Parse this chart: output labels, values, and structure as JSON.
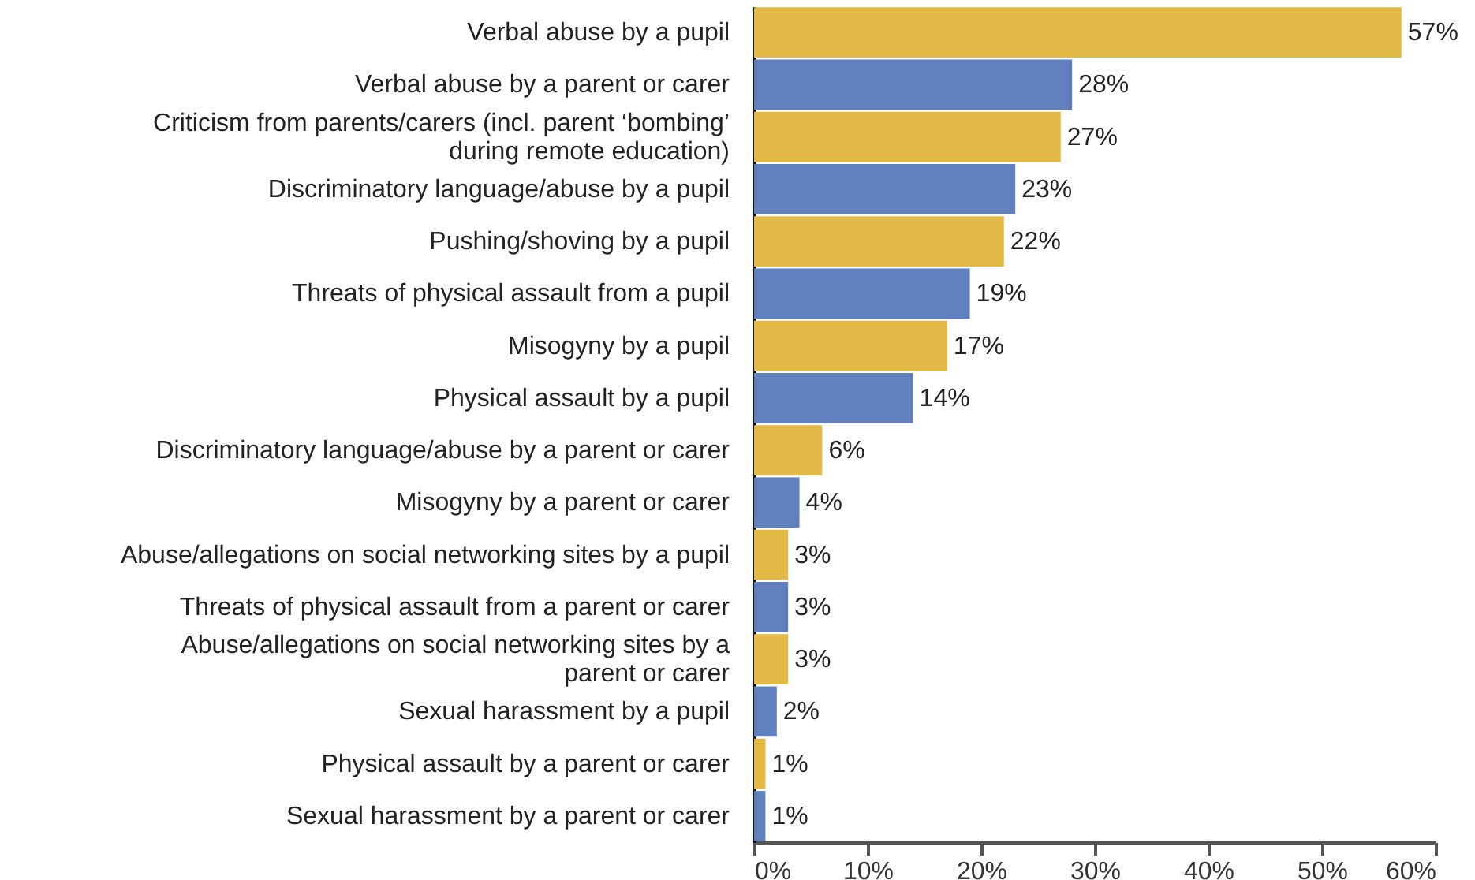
{
  "chart_data": {
    "type": "bar",
    "orientation": "horizontal",
    "categories": [
      "Verbal abuse by a pupil",
      "Verbal abuse by a parent or carer",
      "Criticism from parents/carers (incl. parent ‘bombing’ during remote education)",
      "Discriminatory language/abuse by a pupil",
      "Pushing/shoving by a pupil",
      "Threats of physical assault from a pupil",
      "Misogyny by a pupil",
      "Physical assault by a pupil",
      "Discriminatory language/abuse by a parent or carer",
      "Misogyny by a parent or carer",
      "Abuse/allegations on social networking sites by a pupil",
      "Threats of physical assault from a parent or carer",
      "Abuse/allegations on social networking sites by a parent or carer",
      "Sexual harassment by a pupil",
      "Physical assault by a parent or carer",
      "Sexual harassment by a parent or carer"
    ],
    "values": [
      57,
      28,
      27,
      23,
      22,
      19,
      17,
      14,
      6,
      4,
      3,
      3,
      3,
      2,
      1,
      1
    ],
    "colors": [
      "#e3ba45",
      "#5f80bd",
      "#e3ba45",
      "#5f80bd",
      "#e3ba45",
      "#5f80bd",
      "#e3ba45",
      "#5f80bd",
      "#e3ba45",
      "#5f80bd",
      "#e3ba45",
      "#5f80bd",
      "#e3ba45",
      "#5f80bd",
      "#e3ba45",
      "#5f80bd"
    ],
    "xlim": [
      0,
      60
    ],
    "xticks": [
      {
        "value": 0,
        "label": "0%"
      },
      {
        "value": 10,
        "label": "10%"
      },
      {
        "value": 20,
        "label": "20%"
      },
      {
        "value": 30,
        "label": "30%"
      },
      {
        "value": 40,
        "label": "40%"
      },
      {
        "value": 50,
        "label": "50%"
      },
      {
        "value": 60,
        "label": "60%"
      }
    ],
    "value_labels": [
      "57%",
      "28%",
      "27%",
      "23%",
      "22%",
      "19%",
      "17%",
      "14%",
      "6%",
      "4%",
      "3%",
      "3%",
      "3%",
      "2%",
      "1%",
      "1%"
    ],
    "data_labels": false
  }
}
